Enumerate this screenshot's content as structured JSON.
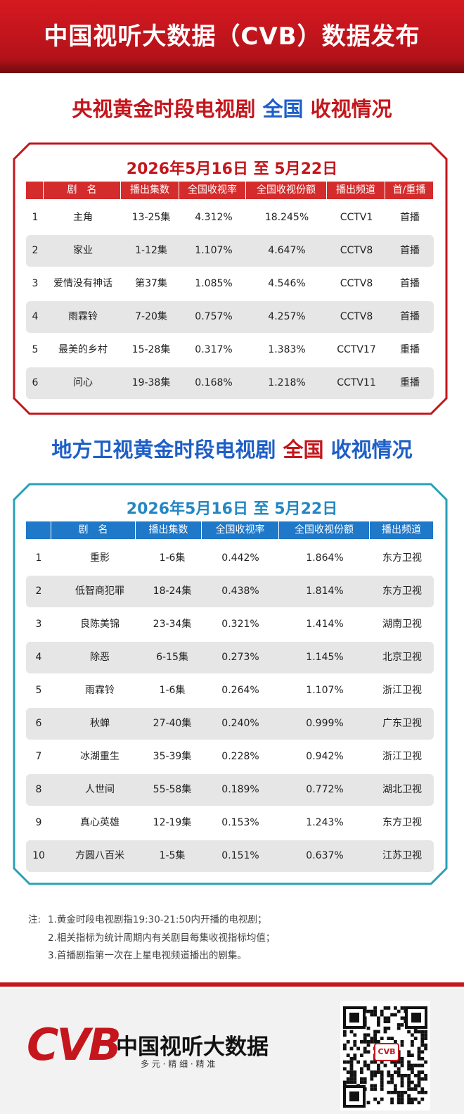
{
  "header": {
    "title": "中国视听大数据（CVB）数据发布"
  },
  "section1": {
    "heading": [
      "央视黄金时段电视剧",
      "全国",
      "收视情况"
    ],
    "date": "2026年5月16日 至 5月22日",
    "columns": [
      "剧　名",
      "播出集数",
      "全国收视率",
      "全国收视份额",
      "播出频道",
      "首/重播"
    ],
    "rows": [
      [
        "1",
        "主角",
        "13-25集",
        "4.312%",
        "18.245%",
        "CCTV1",
        "首播"
      ],
      [
        "2",
        "家业",
        "1-12集",
        "1.107%",
        "4.647%",
        "CCTV8",
        "首播"
      ],
      [
        "3",
        "爱情没有神话",
        "第37集",
        "1.085%",
        "4.546%",
        "CCTV8",
        "首播"
      ],
      [
        "4",
        "雨霖铃",
        "7-20集",
        "0.757%",
        "4.257%",
        "CCTV8",
        "首播"
      ],
      [
        "5",
        "最美的乡村",
        "15-28集",
        "0.317%",
        "1.383%",
        "CCTV17",
        "重播"
      ],
      [
        "6",
        "问心",
        "19-38集",
        "0.168%",
        "1.218%",
        "CCTV11",
        "重播"
      ]
    ]
  },
  "section2": {
    "heading": [
      "地方卫视黄金时段电视剧",
      "全国",
      "收视情况"
    ],
    "date": "2026年5月16日 至 5月22日",
    "columns": [
      "剧　名",
      "播出集数",
      "全国收视率",
      "全国收视份额",
      "播出频道"
    ],
    "rows": [
      [
        "1",
        "重影",
        "1-6集",
        "0.442%",
        "1.864%",
        "东方卫视"
      ],
      [
        "2",
        "低智商犯罪",
        "18-24集",
        "0.438%",
        "1.814%",
        "东方卫视"
      ],
      [
        "3",
        "良陈美锦",
        "23-34集",
        "0.321%",
        "1.414%",
        "湖南卫视"
      ],
      [
        "4",
        "除恶",
        "6-15集",
        "0.273%",
        "1.145%",
        "北京卫视"
      ],
      [
        "5",
        "雨霖铃",
        "1-6集",
        "0.264%",
        "1.107%",
        "浙江卫视"
      ],
      [
        "6",
        "秋蝉",
        "27-40集",
        "0.240%",
        "0.999%",
        "广东卫视"
      ],
      [
        "7",
        "冰湖重生",
        "35-39集",
        "0.228%",
        "0.942%",
        "浙江卫视"
      ],
      [
        "8",
        "人世间",
        "55-58集",
        "0.189%",
        "0.772%",
        "湖北卫视"
      ],
      [
        "9",
        "真心英雄",
        "12-19集",
        "0.153%",
        "1.243%",
        "东方卫视"
      ],
      [
        "10",
        "方圆八百米",
        "1-5集",
        "0.151%",
        "0.637%",
        "江苏卫视"
      ]
    ]
  },
  "notes": {
    "label": "注:",
    "items": [
      "1.黄金时段电视剧指19:30-21:50内开播的电视剧；",
      "2.相关指标为统计周期内有关剧目每集收视指标均值；",
      "3.首播剧指第一次在上星电视频道播出的剧集。"
    ]
  },
  "footer": {
    "logo": "CVB",
    "brand": "中国视听大数据",
    "slogan": "多 元 · 精 细 · 精 准",
    "qr_badge": "CVB"
  }
}
